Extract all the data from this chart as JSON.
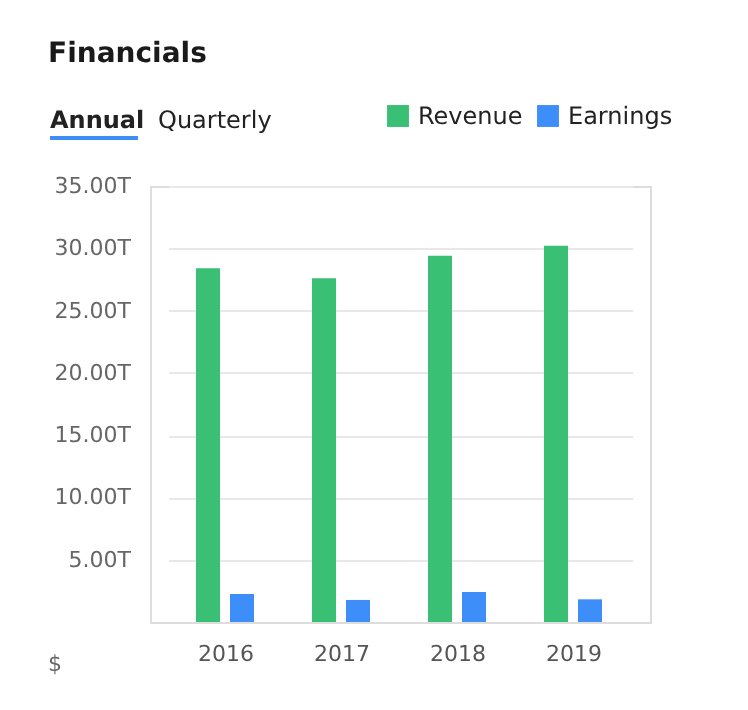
{
  "chart_data": {
    "type": "bar",
    "title": "Financials",
    "ylabel": "$",
    "annotations": [
      "Annual",
      "Quarterly"
    ],
    "categories": [
      "2016",
      "2017",
      "2018",
      "2019"
    ],
    "series": [
      {
        "name": "Revenue",
        "color": "#39c074",
        "values": [
          28.4,
          27.6,
          29.4,
          30.2
        ]
      },
      {
        "name": "Earnings",
        "color": "#3d8ef8",
        "values": [
          2.25,
          1.77,
          2.41,
          1.82
        ]
      }
    ],
    "ylim": [
      0,
      35
    ],
    "yticks": [
      {
        "value": 5,
        "label": "5.00T"
      },
      {
        "value": 10,
        "label": "10.00T"
      },
      {
        "value": 15,
        "label": "15.00T"
      },
      {
        "value": 20,
        "label": "20.00T"
      },
      {
        "value": 25,
        "label": "25.00T"
      },
      {
        "value": 30,
        "label": "30.00T"
      },
      {
        "value": 35,
        "label": "35.00T"
      }
    ],
    "grid": "y",
    "legend": "top right"
  }
}
